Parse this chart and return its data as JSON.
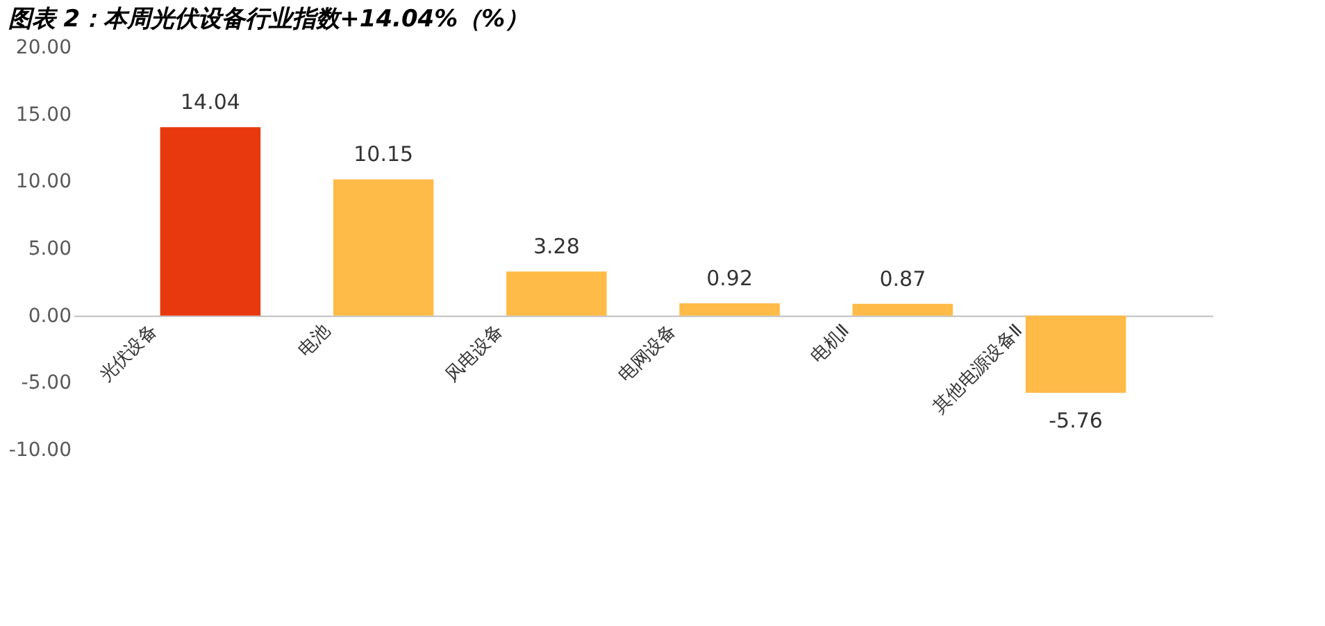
{
  "chart_data": {
    "type": "bar",
    "title": "图表 2：本周光伏设备行业指数+14.04%（%）",
    "categories": [
      "光伏设备",
      "电池",
      "风电设备",
      "电网设备",
      "电机Ⅱ",
      "其他电源设备Ⅱ"
    ],
    "values": [
      14.04,
      10.15,
      3.28,
      0.92,
      0.87,
      -5.76
    ],
    "colors": [
      "#e8380d",
      "#ffbb47",
      "#ffbb47",
      "#ffbb47",
      "#ffbb47",
      "#ffbb47"
    ],
    "ylim": [
      -10,
      20
    ],
    "yticks": [
      {
        "value": -10,
        "label": "-10.00"
      },
      {
        "value": -5,
        "label": "-5.00"
      },
      {
        "value": 0,
        "label": "0.00"
      },
      {
        "value": 5,
        "label": "5.00"
      },
      {
        "value": 10,
        "label": "10.00"
      },
      {
        "value": 15,
        "label": "15.00"
      },
      {
        "value": 20,
        "label": "20.00"
      }
    ],
    "data_labels": true,
    "grid": false
  }
}
